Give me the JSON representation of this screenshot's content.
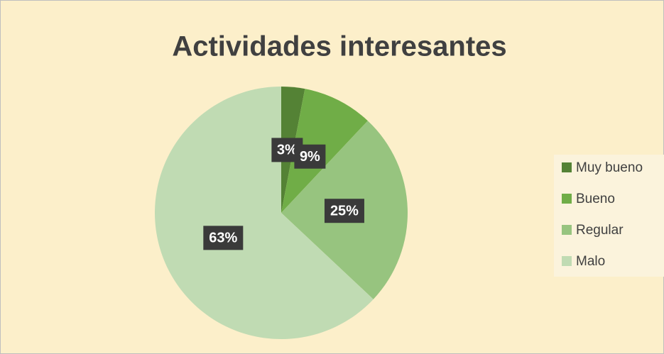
{
  "chart_data": {
    "type": "pie",
    "title": "Actividades interesantes",
    "categories": [
      "Muy bueno",
      "Bueno",
      "Regular",
      "Malo"
    ],
    "values": [
      3,
      9,
      25,
      63
    ],
    "value_labels": [
      "3%",
      "9%",
      "25%",
      "63%"
    ],
    "colors": [
      "#548235",
      "#70ad47",
      "#97c47f",
      "#c0dbb3"
    ],
    "legend": "right"
  }
}
